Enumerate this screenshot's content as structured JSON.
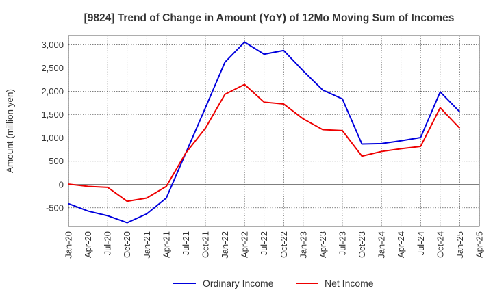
{
  "chart_data": {
    "type": "line",
    "title": "[9824]  Trend of Change in Amount (YoY) of 12Mo Moving Sum of Incomes",
    "xlabel": "",
    "ylabel": "Amount (million yen)",
    "ylim": [
      -900,
      3200
    ],
    "yticks": [
      -500,
      0,
      500,
      1000,
      1500,
      2000,
      2500,
      3000
    ],
    "ytick_labels": [
      "-500",
      "0",
      "500",
      "1,000",
      "1,500",
      "2,000",
      "2,500",
      "3,000"
    ],
    "categories": [
      "Jan-20",
      "Apr-20",
      "Jul-20",
      "Oct-20",
      "Jan-21",
      "Apr-21",
      "Jul-21",
      "Oct-21",
      "Jan-22",
      "Apr-22",
      "Jul-22",
      "Oct-22",
      "Jan-23",
      "Apr-23",
      "Jul-23",
      "Oct-23",
      "Jan-24",
      "Apr-24",
      "Jul-24",
      "Oct-24",
      "Jan-25",
      "Apr-25"
    ],
    "x": [
      "Jan-20",
      "Apr-20",
      "Jul-20",
      "Oct-20",
      "Jan-21",
      "Apr-21",
      "Jul-21",
      "Oct-21",
      "Jan-22",
      "Apr-22",
      "Jul-22",
      "Oct-22",
      "Jan-23",
      "Apr-23",
      "Jul-23",
      "Oct-23",
      "Jan-24",
      "Apr-24",
      "Jul-24",
      "Oct-24",
      "Jan-25"
    ],
    "grid": true,
    "legend_position": "bottom",
    "series": [
      {
        "name": "Ordinary Income",
        "color": "#0000dd",
        "values": [
          -410,
          -570,
          -670,
          -820,
          -630,
          -290,
          680,
          1650,
          2630,
          3060,
          2800,
          2880,
          2440,
          2030,
          1840,
          870,
          880,
          940,
          1010,
          1990,
          1560
        ]
      },
      {
        "name": "Net Income",
        "color": "#ee0000",
        "values": [
          10,
          -40,
          -60,
          -360,
          -290,
          -40,
          680,
          1210,
          1940,
          2150,
          1770,
          1730,
          1410,
          1180,
          1160,
          610,
          710,
          770,
          820,
          1650,
          1210
        ]
      }
    ]
  }
}
